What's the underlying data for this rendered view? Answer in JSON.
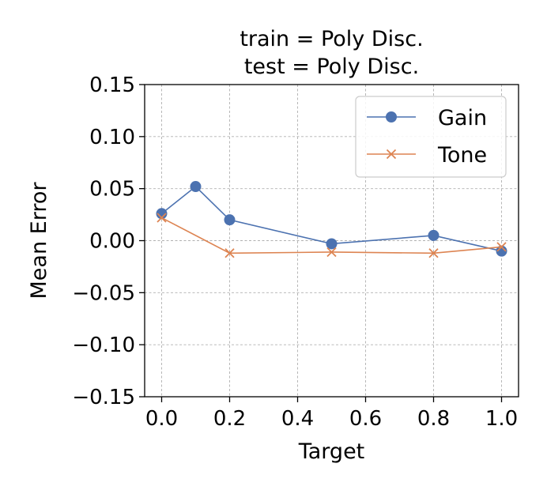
{
  "chart_data": {
    "type": "line",
    "title_lines": [
      "train = Poly Disc.",
      "test = Poly Disc."
    ],
    "xlabel": "Target",
    "ylabel": "Mean Error",
    "xlim": [
      -0.05,
      1.05
    ],
    "ylim": [
      -0.15,
      0.15
    ],
    "xticks": [
      0.0,
      0.2,
      0.4,
      0.6,
      0.8,
      1.0
    ],
    "xtick_labels": [
      "0.0",
      "0.2",
      "0.4",
      "0.6",
      "0.8",
      "1.0"
    ],
    "yticks": [
      0.15,
      0.1,
      0.05,
      0.0,
      -0.05,
      -0.1,
      -0.15
    ],
    "ytick_labels": [
      "0.15",
      "0.10",
      "0.05",
      "0.00",
      "−0.05",
      "−0.10",
      "−0.15"
    ],
    "grid": true,
    "legend_position": "top-right",
    "series": [
      {
        "name": "Gain",
        "marker": "circle",
        "color": "#4c72b0",
        "x": [
          0.0,
          0.1,
          0.2,
          0.5,
          0.8,
          1.0
        ],
        "y": [
          0.026,
          0.052,
          0.02,
          -0.003,
          0.005,
          -0.01
        ]
      },
      {
        "name": "Tone",
        "marker": "x",
        "color": "#dd8452",
        "x": [
          0.0,
          0.2,
          0.5,
          0.8,
          1.0
        ],
        "y": [
          0.022,
          -0.012,
          -0.011,
          -0.012,
          -0.006
        ]
      }
    ]
  }
}
